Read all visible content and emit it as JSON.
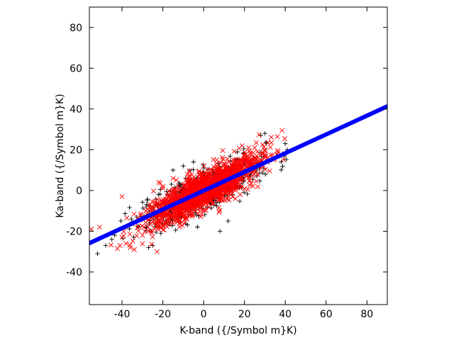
{
  "chart_data": {
    "type": "scatter",
    "title": "",
    "xlabel": "K-band ({/Symbol m}K)",
    "ylabel": "Ka-band ({/Symbol m}K)",
    "xlim": [
      -56,
      90
    ],
    "ylim": [
      -56,
      90
    ],
    "x_ticks": [
      -40,
      -20,
      0,
      20,
      40,
      60,
      80
    ],
    "y_ticks": [
      -40,
      -20,
      0,
      20,
      40,
      60,
      80
    ],
    "grid": false,
    "legend": "none",
    "series": [
      {
        "marker": "plus",
        "color": "#000000",
        "cloud": {
          "n": 650,
          "x_mean": 0,
          "x_sd": 15,
          "slope": 0.5,
          "resid_sd": 5,
          "x_range": [
            -55,
            42
          ]
        },
        "points": [
          [
            -52,
            -31
          ],
          [
            -48,
            -27
          ],
          [
            -45,
            -24
          ],
          [
            -27,
            -28
          ],
          [
            -25,
            -27
          ],
          [
            -21,
            -21
          ],
          [
            8,
            -20
          ],
          [
            12,
            -15
          ],
          [
            30,
            28
          ],
          [
            28,
            27
          ],
          [
            40,
            23
          ],
          [
            41,
            20
          ],
          [
            38,
            14
          ],
          [
            -5,
            14
          ],
          [
            -10,
            12
          ],
          [
            -15,
            10
          ]
        ]
      },
      {
        "marker": "x",
        "color": "#ff0000",
        "cloud": {
          "n": 1600,
          "x_mean": 0,
          "x_sd": 14,
          "slope": 0.5,
          "resid_sd": 4.5,
          "x_range": [
            -53,
            40
          ]
        },
        "points": [
          [
            -51,
            -18
          ],
          [
            -41,
            -27
          ],
          [
            -40,
            -23
          ],
          [
            -40,
            -3
          ],
          [
            -36,
            -28
          ],
          [
            -34,
            -29
          ],
          [
            -30,
            -22
          ],
          [
            -22,
            4
          ],
          [
            -20,
            2
          ],
          [
            -15,
            6
          ],
          [
            -8,
            8
          ],
          [
            25,
            21
          ],
          [
            30,
            20
          ],
          [
            -55,
            -19
          ]
        ]
      },
      {
        "name": "",
        "marker": "line",
        "color": "#0000ff",
        "line": {
          "slope": 0.46,
          "intercept": -0.1,
          "x_range": [
            -56,
            90
          ]
        }
      }
    ]
  }
}
